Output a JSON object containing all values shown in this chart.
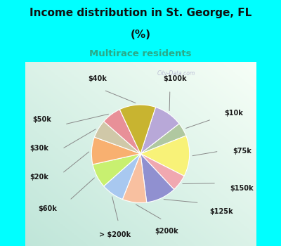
{
  "title_line1": "Income distribution in St. George, FL",
  "title_line2": "(%)",
  "subtitle": "Multirace residents",
  "title_color": "#111111",
  "subtitle_color": "#2aaa88",
  "bg_color": "#00ffff",
  "chart_bg_gradient_start": "#f0f8f5",
  "chart_bg_gradient_end": "#c8ede0",
  "watermark": "City-Data.com",
  "labels": [
    "$100k",
    "$10k",
    "$75k",
    "$150k",
    "$125k",
    "$200k",
    "> $200k",
    "$60k",
    "$20k",
    "$30k",
    "$50k",
    "$40k"
  ],
  "values": [
    9.5,
    4.5,
    13.5,
    5.5,
    10.0,
    8.0,
    7.5,
    8.0,
    9.0,
    6.0,
    6.5,
    12.0
  ],
  "colors": [
    "#b8a8d8",
    "#b0c8a0",
    "#f8f278",
    "#f0a8b0",
    "#9090d0",
    "#f8c0a0",
    "#a8c8f0",
    "#c8f070",
    "#f8b070",
    "#d0c8a8",
    "#e89098",
    "#c8b430"
  ],
  "figsize": [
    4.0,
    3.5
  ],
  "dpi": 100
}
